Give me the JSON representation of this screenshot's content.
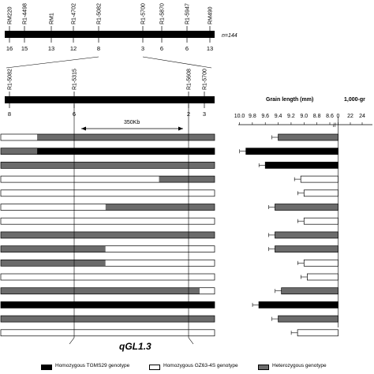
{
  "colors": {
    "homo_tgms29": "#000000",
    "homo_gz63": "#ffffff",
    "hetero": "#6b6b6b",
    "line": "#000000"
  },
  "top_map": {
    "markers": [
      "RM220",
      "R1-4498",
      "RM1",
      "R1-4702",
      "R1-5082",
      "R1-5700",
      "R1-5870",
      "R1-5947",
      "RM490"
    ],
    "recombinants": [
      "16",
      "15",
      "13",
      "12",
      "8",
      "3",
      "6",
      "6",
      "13"
    ],
    "n_label": "n=144"
  },
  "fine_map": {
    "markers": [
      "R1-5082",
      "R1-5315",
      "R1-5608",
      "R1-5700"
    ],
    "recombinants": [
      "8",
      "6",
      "2",
      "3"
    ],
    "interval_label": "350Kb"
  },
  "qtl_label": "qGL1.3",
  "graph_title_1": "Grain length (mm)",
  "graph_title_2": "1,000-gr",
  "x_ticks_left": [
    "10.0",
    "9.8",
    "9.6",
    "9.4",
    "9.2",
    "9.0",
    "8.8",
    "8.6",
    "0"
  ],
  "x_ticks_right": [
    "22",
    "24"
  ],
  "rows": [
    {
      "segments": [
        [
          "homo_gz63",
          0,
          0.17
        ],
        [
          "hetero",
          0.17,
          1.0
        ]
      ],
      "grain_length": 9.4,
      "grain_color": "hetero"
    },
    {
      "segments": [
        [
          "hetero",
          0,
          0.17
        ],
        [
          "homo_tgms29",
          0.17,
          1.0
        ]
      ],
      "grain_length": 9.9,
      "grain_color": "homo_tgms29"
    },
    {
      "segments": [
        [
          "hetero",
          0,
          1.0
        ]
      ],
      "grain_length": 9.6,
      "grain_color": "homo_tgms29"
    },
    {
      "segments": [
        [
          "homo_gz63",
          0,
          0.74
        ],
        [
          "hetero",
          0.74,
          1.0
        ]
      ],
      "grain_length": 9.05,
      "grain_color": "homo_gz63"
    },
    {
      "segments": [
        [
          "homo_gz63",
          0,
          1.0
        ]
      ],
      "grain_length": 9.0,
      "grain_color": "homo_gz63"
    },
    {
      "segments": [
        [
          "homo_gz63",
          0,
          0.49
        ],
        [
          "hetero",
          0.49,
          1.0
        ]
      ],
      "grain_length": 9.45,
      "grain_color": "hetero"
    },
    {
      "segments": [
        [
          "homo_gz63",
          0,
          1.0
        ]
      ],
      "grain_length": 9.0,
      "grain_color": "homo_gz63"
    },
    {
      "segments": [
        [
          "hetero",
          0,
          1.0
        ]
      ],
      "grain_length": 9.45,
      "grain_color": "hetero"
    },
    {
      "segments": [
        [
          "hetero",
          0,
          0.49
        ],
        [
          "homo_gz63",
          0.49,
          1.0
        ]
      ],
      "grain_length": 9.45,
      "grain_color": "hetero"
    },
    {
      "segments": [
        [
          "hetero",
          0,
          0.49
        ],
        [
          "homo_gz63",
          0.49,
          1.0
        ]
      ],
      "grain_length": 9.0,
      "grain_color": "homo_gz63"
    },
    {
      "segments": [
        [
          "homo_gz63",
          0,
          1.0
        ]
      ],
      "grain_length": 8.95,
      "grain_color": "homo_gz63"
    },
    {
      "segments": [
        [
          "hetero",
          0,
          0.93
        ],
        [
          "homo_gz63",
          0.93,
          1.0
        ]
      ],
      "grain_length": 9.35,
      "grain_color": "hetero"
    },
    {
      "segments": [
        [
          "homo_tgms29",
          0,
          1.0
        ]
      ],
      "grain_length": 9.7,
      "grain_color": "homo_tgms29"
    },
    {
      "segments": [
        [
          "hetero",
          0,
          1.0
        ]
      ],
      "grain_length": 9.4,
      "grain_color": "hetero"
    },
    {
      "segments": [
        [
          "homo_gz63",
          0,
          1.0
        ]
      ],
      "grain_length": 9.1,
      "grain_color": "homo_gz63"
    }
  ],
  "legend": [
    {
      "swatch": "homo_tgms29",
      "label": "Homozygous TGMS29 genotype"
    },
    {
      "swatch": "homo_gz63",
      "label": "Homozygous GZ63-4S genotype"
    },
    {
      "swatch": "hetero",
      "label": "Heterozygous genotype"
    }
  ]
}
